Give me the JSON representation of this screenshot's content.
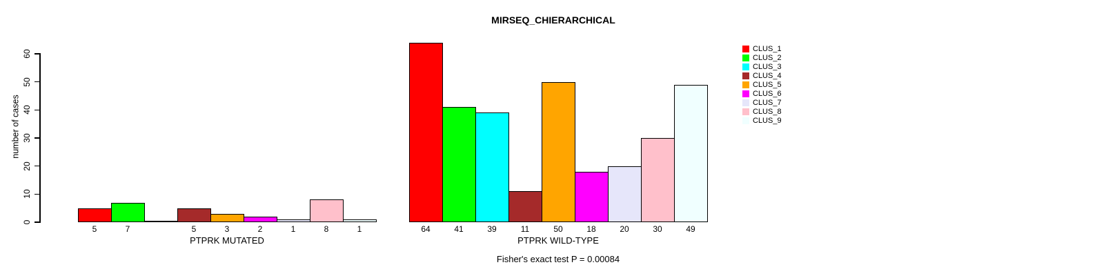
{
  "chart_data": {
    "type": "bar",
    "title": "MIRSEQ_CHIERARCHICAL",
    "ylabel": "number of cases",
    "ylim": [
      0,
      60
    ],
    "yticks": [
      0,
      10,
      20,
      30,
      40,
      50,
      60
    ],
    "grid": false,
    "legend_position": "top-right",
    "bar_outline_color": "#000000",
    "legend": [
      {
        "label": "CLUS_1",
        "color": "#ff0000"
      },
      {
        "label": "CLUS_2",
        "color": "#00ff00"
      },
      {
        "label": "CLUS_3",
        "color": "#00ffff"
      },
      {
        "label": "CLUS_4",
        "color": "#a52a2a"
      },
      {
        "label": "CLUS_5",
        "color": "#ffa500"
      },
      {
        "label": "CLUS_6",
        "color": "#ff00ff"
      },
      {
        "label": "CLUS_7",
        "color": "#e6e6fa"
      },
      {
        "label": "CLUS_8",
        "color": "#ffc0cb"
      },
      {
        "label": "CLUS_9",
        "color": "#f0ffff"
      }
    ],
    "groups": [
      {
        "label": "PTPRK MUTATED",
        "values": [
          5,
          7,
          0,
          5,
          3,
          2,
          1,
          8,
          1
        ]
      },
      {
        "label": "PTPRK WILD-TYPE",
        "values": [
          64,
          41,
          39,
          11,
          50,
          18,
          20,
          30,
          49
        ]
      }
    ],
    "annotation": "Fisher's exact test P = 0.00084"
  }
}
